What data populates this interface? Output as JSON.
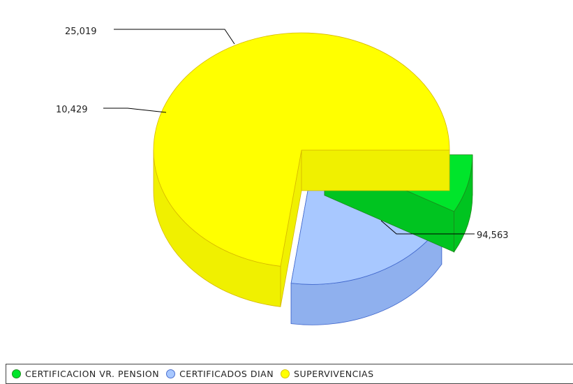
{
  "chart_data": {
    "type": "pie",
    "style": "3d-exploded",
    "categories": [
      "CERTIFICACION VR. PENSION",
      "CERTIFICADOS DIAN",
      "SUPERVIVENCIAS"
    ],
    "values": [
      10429,
      25019,
      94563
    ],
    "data_labels": [
      "10,429",
      "25,019",
      "94,563"
    ],
    "colors": [
      "#00e52b",
      "#a8c8ff",
      "#ffff00"
    ],
    "legend_position": "bottom",
    "title": ""
  },
  "legend": {
    "items": [
      {
        "label": "CERTIFICACION VR. PENSION",
        "color": "#00e52b",
        "border": "#1f8f1f"
      },
      {
        "label": "CERTIFICADOS DIAN",
        "color": "#a8c8ff",
        "border": "#4a6fd0"
      },
      {
        "label": "SUPERVIVENCIAS",
        "color": "#ffff00",
        "border": "#d8c400"
      }
    ]
  }
}
